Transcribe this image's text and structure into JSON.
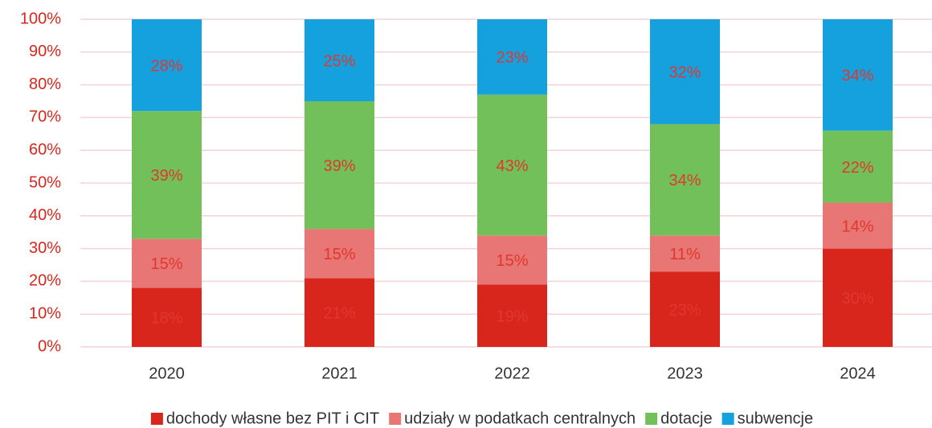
{
  "chart_data": {
    "type": "stacked_bar",
    "categories": [
      "2020",
      "2021",
      "2022",
      "2023",
      "2024"
    ],
    "series": [
      {
        "name": "dochody własne bez PIT i CIT",
        "color": "#d9261c",
        "values": [
          18,
          21,
          19,
          23,
          30
        ],
        "value_labels": [
          "18%",
          "21%",
          "19%",
          "23%",
          "30%"
        ]
      },
      {
        "name": "udziały w podatkach centralnych",
        "color": "#e87674",
        "values": [
          15,
          15,
          15,
          11,
          14
        ],
        "value_labels": [
          "15%",
          "15%",
          "15%",
          "11%",
          "14%"
        ]
      },
      {
        "name": "dotacje",
        "color": "#72c05a",
        "values": [
          39,
          39,
          43,
          34,
          22
        ],
        "value_labels": [
          "39%",
          "39%",
          "43%",
          "34%",
          "22%"
        ]
      },
      {
        "name": "subwencje",
        "color": "#15a0de",
        "values": [
          28,
          25,
          23,
          32,
          34
        ],
        "value_labels": [
          "28%",
          "25%",
          "23%",
          "32%",
          "34%"
        ]
      }
    ],
    "ylim": [
      0,
      100
    ],
    "yticks": [
      {
        "value": 0,
        "label": "0%"
      },
      {
        "value": 10,
        "label": "10%"
      },
      {
        "value": 20,
        "label": "20%"
      },
      {
        "value": 30,
        "label": "30%"
      },
      {
        "value": 40,
        "label": "40%"
      },
      {
        "value": 50,
        "label": "50%"
      },
      {
        "value": 60,
        "label": "60%"
      },
      {
        "value": 70,
        "label": "70%"
      },
      {
        "value": 80,
        "label": "80%"
      },
      {
        "value": 90,
        "label": "90%"
      },
      {
        "value": 100,
        "label": "100%"
      }
    ],
    "grid": true,
    "legend": "bottom"
  }
}
